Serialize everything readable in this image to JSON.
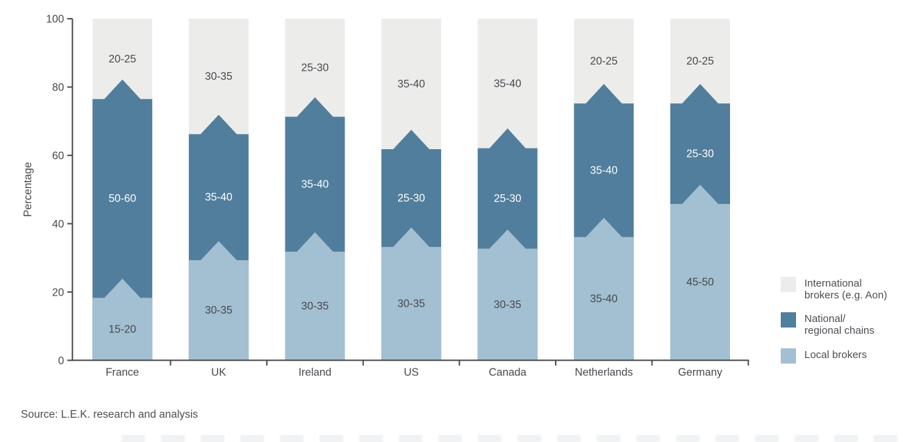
{
  "chart_data": {
    "type": "bar",
    "stacked": true,
    "title": "",
    "xlabel": "",
    "ylabel": "Percentage",
    "ylim": [
      0,
      100
    ],
    "yticks": [
      0,
      20,
      40,
      60,
      80,
      100
    ],
    "grid": false,
    "legend_position": "right",
    "categories": [
      "France",
      "UK",
      "Ireland",
      "US",
      "Canada",
      "Netherlands",
      "Germany"
    ],
    "series": [
      {
        "name": "Local brokers",
        "color": "#a3bfd2",
        "label_color": "#45484d",
        "labels": [
          "15-20",
          "30-35",
          "30-35",
          "30-35",
          "30-35",
          "35-40",
          "45-50"
        ],
        "boundary_flat_pct": [
          18.3,
          29.3,
          31.8,
          33.2,
          32.7,
          36.1,
          45.8
        ],
        "boundary_peak_pct": [
          23.9,
          34.9,
          37.5,
          38.9,
          38.3,
          41.7,
          51.4
        ]
      },
      {
        "name": "National/regional chains",
        "color": "#517e9c",
        "label_color": "#ffffff",
        "labels": [
          "50-60",
          "35-40",
          "35-40",
          "25-30",
          "25-30",
          "35-40",
          "25-30"
        ],
        "boundary_flat_pct": [
          76.5,
          66.2,
          71.3,
          61.8,
          62.1,
          75.2,
          75.2
        ],
        "boundary_peak_pct": [
          82.2,
          71.9,
          77.0,
          67.5,
          67.9,
          80.9,
          80.9
        ]
      },
      {
        "name": "International brokers (e.g. Aon)",
        "color": "#ececea",
        "label_color": "#45484d",
        "labels": [
          "20-25",
          "30-35",
          "25-30",
          "35-40",
          "35-40",
          "20-25",
          "20-25"
        ],
        "top_pct": 100
      }
    ],
    "legend": [
      {
        "lines": [
          "International",
          "brokers (e.g. Aon)"
        ],
        "color": "#ececea"
      },
      {
        "lines": [
          "National/",
          "regional chains"
        ],
        "color": "#517e9c"
      },
      {
        "lines": [
          "Local brokers"
        ],
        "color": "#a3bfd2"
      }
    ],
    "colors": {
      "axis": "#4a4c4e",
      "tick_label": "#45484d"
    }
  },
  "source": {
    "text": "Source: L.E.K. research and analysis"
  }
}
